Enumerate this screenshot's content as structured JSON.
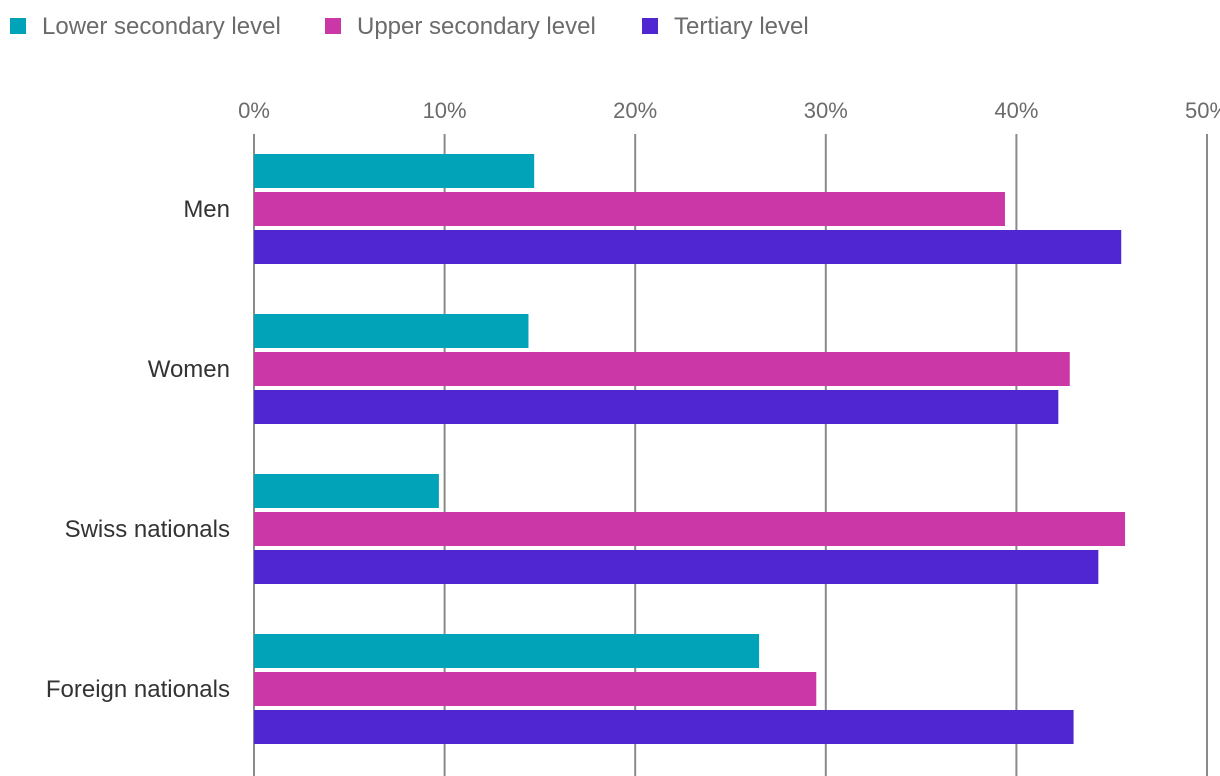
{
  "chart_data": {
    "type": "bar",
    "orientation": "horizontal",
    "categories": [
      "Men",
      "Women",
      "Swiss nationals",
      "Foreign nationals"
    ],
    "series": [
      {
        "name": "Lower secondary level",
        "color": "#00a3b8",
        "values": [
          14.7,
          14.4,
          9.7,
          26.5
        ]
      },
      {
        "name": "Upper secondary level",
        "color": "#cc37a8",
        "values": [
          39.4,
          42.8,
          45.7,
          29.5
        ]
      },
      {
        "name": "Tertiary level",
        "color": "#5026d3",
        "values": [
          45.5,
          42.2,
          44.3,
          43.0
        ]
      }
    ],
    "xlim": [
      0,
      50
    ],
    "xticks": [
      0,
      10,
      20,
      30,
      40,
      50
    ],
    "xtick_labels": [
      "0%",
      "10%",
      "20%",
      "30%",
      "40%",
      "50%"
    ],
    "legend_position": "top-left",
    "grid": true
  }
}
